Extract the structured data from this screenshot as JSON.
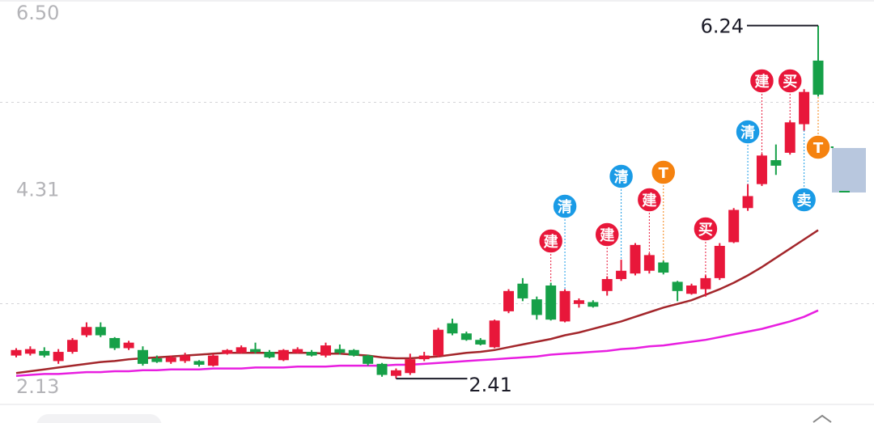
{
  "chart_data": {
    "type": "candlestick",
    "ylim": [
      2.13,
      6.5
    ],
    "yticks": [
      {
        "value": 6.5,
        "label": "6.50"
      },
      4.31,
      2.13
    ],
    "up_color": "#e8173a",
    "down_color": "#16a048",
    "open": [
      2.66,
      2.68,
      2.71,
      2.6,
      2.7,
      2.88,
      2.97,
      2.85,
      2.74,
      2.72,
      2.63,
      2.59,
      2.6,
      2.6,
      2.55,
      2.68,
      2.69,
      2.73,
      2.7,
      2.61,
      2.69,
      2.7,
      2.66,
      2.73,
      2.72,
      2.66,
      2.57,
      2.44,
      2.47,
      2.62,
      2.66,
      3.01,
      2.9,
      2.83,
      2.75,
      3.14,
      3.44,
      3.27,
      3.42,
      3.03,
      3.22,
      3.24,
      3.36,
      3.49,
      3.55,
      3.58,
      3.67,
      3.46,
      3.33,
      3.38,
      3.5,
      3.89,
      4.26,
      4.52,
      4.78,
      4.86,
      5.17,
      5.86
    ],
    "high": [
      2.74,
      2.76,
      2.75,
      2.73,
      2.85,
      3.02,
      3.02,
      2.86,
      2.82,
      2.76,
      2.66,
      2.66,
      2.69,
      2.61,
      2.68,
      2.73,
      2.77,
      2.8,
      2.72,
      2.73,
      2.75,
      2.72,
      2.8,
      2.78,
      2.73,
      2.67,
      2.58,
      2.52,
      2.68,
      2.7,
      2.96,
      3.06,
      2.92,
      2.85,
      3.05,
      3.38,
      3.5,
      3.3,
      3.45,
      3.38,
      3.28,
      3.26,
      3.52,
      3.7,
      3.88,
      3.77,
      3.69,
      3.47,
      3.44,
      3.53,
      3.88,
      4.26,
      4.52,
      4.85,
      4.95,
      5.21,
      5.55,
      6.24
    ],
    "low": [
      2.64,
      2.66,
      2.64,
      2.57,
      2.68,
      2.86,
      2.86,
      2.72,
      2.72,
      2.55,
      2.58,
      2.57,
      2.58,
      2.54,
      2.54,
      2.67,
      2.68,
      2.68,
      2.63,
      2.6,
      2.68,
      2.65,
      2.64,
      2.67,
      2.65,
      2.55,
      2.43,
      2.41,
      2.45,
      2.6,
      2.64,
      2.88,
      2.82,
      2.77,
      2.74,
      3.12,
      3.25,
      3.05,
      3.04,
      3.02,
      3.18,
      3.18,
      3.31,
      3.47,
      3.53,
      3.55,
      3.54,
      3.25,
      3.32,
      3.3,
      3.48,
      3.88,
      4.23,
      4.5,
      4.62,
      4.84,
      5.1,
      5.47
    ],
    "close": [
      2.72,
      2.73,
      2.66,
      2.7,
      2.83,
      2.97,
      2.88,
      2.74,
      2.8,
      2.57,
      2.59,
      2.64,
      2.66,
      2.56,
      2.66,
      2.72,
      2.75,
      2.7,
      2.64,
      2.72,
      2.73,
      2.66,
      2.77,
      2.69,
      2.66,
      2.57,
      2.45,
      2.5,
      2.62,
      2.66,
      2.94,
      2.9,
      2.83,
      2.78,
      3.04,
      3.36,
      3.28,
      3.1,
      3.05,
      3.36,
      3.26,
      3.19,
      3.49,
      3.58,
      3.86,
      3.75,
      3.56,
      3.36,
      3.42,
      3.5,
      3.85,
      4.24,
      4.39,
      4.83,
      4.72,
      5.19,
      5.52,
      5.49
    ],
    "ma_lines": [
      {
        "color": "#a3262b",
        "values": [
          2.47,
          2.49,
          2.51,
          2.53,
          2.55,
          2.57,
          2.59,
          2.6,
          2.62,
          2.63,
          2.64,
          2.65,
          2.66,
          2.67,
          2.68,
          2.69,
          2.69,
          2.69,
          2.69,
          2.69,
          2.69,
          2.69,
          2.68,
          2.68,
          2.67,
          2.66,
          2.64,
          2.63,
          2.63,
          2.64,
          2.65,
          2.67,
          2.69,
          2.7,
          2.72,
          2.75,
          2.78,
          2.81,
          2.84,
          2.88,
          2.91,
          2.95,
          2.99,
          3.03,
          3.08,
          3.13,
          3.18,
          3.22,
          3.26,
          3.32,
          3.38,
          3.45,
          3.53,
          3.62,
          3.72,
          3.82,
          3.92,
          4.02
        ]
      },
      {
        "color": "#e81ee0",
        "values": [
          2.44,
          2.45,
          2.46,
          2.46,
          2.47,
          2.48,
          2.48,
          2.49,
          2.49,
          2.5,
          2.5,
          2.51,
          2.51,
          2.51,
          2.52,
          2.52,
          2.52,
          2.53,
          2.53,
          2.53,
          2.54,
          2.54,
          2.54,
          2.55,
          2.55,
          2.55,
          2.55,
          2.56,
          2.56,
          2.57,
          2.58,
          2.59,
          2.6,
          2.61,
          2.62,
          2.63,
          2.64,
          2.65,
          2.67,
          2.68,
          2.69,
          2.7,
          2.71,
          2.73,
          2.74,
          2.76,
          2.77,
          2.79,
          2.81,
          2.83,
          2.86,
          2.89,
          2.92,
          2.95,
          2.99,
          3.03,
          3.08,
          3.15
        ]
      }
    ],
    "signals": [
      {
        "index": 38,
        "text": "建",
        "color": "#e8173a"
      },
      {
        "index": 39,
        "text": "清",
        "color": "#1a9be6"
      },
      {
        "index": 42,
        "text": "建",
        "color": "#e8173a"
      },
      {
        "index": 43,
        "text": "清",
        "color": "#1a9be6"
      },
      {
        "index": 45,
        "text": "建",
        "color": "#e8173a"
      },
      {
        "index": 46,
        "text": "T",
        "color": "#f5820f"
      },
      {
        "index": 49,
        "text": "买",
        "color": "#e8173a"
      },
      {
        "index": 52,
        "text": "清",
        "color": "#1a9be6"
      },
      {
        "index": 53,
        "text": "建",
        "color": "#e8173a"
      },
      {
        "index": 55,
        "text": "买",
        "color": "#e8173a"
      },
      {
        "index": 56,
        "text": "卖",
        "color": "#1a9be6"
      },
      {
        "index": 57,
        "text": "T",
        "color": "#f5820f"
      }
    ]
  }
}
